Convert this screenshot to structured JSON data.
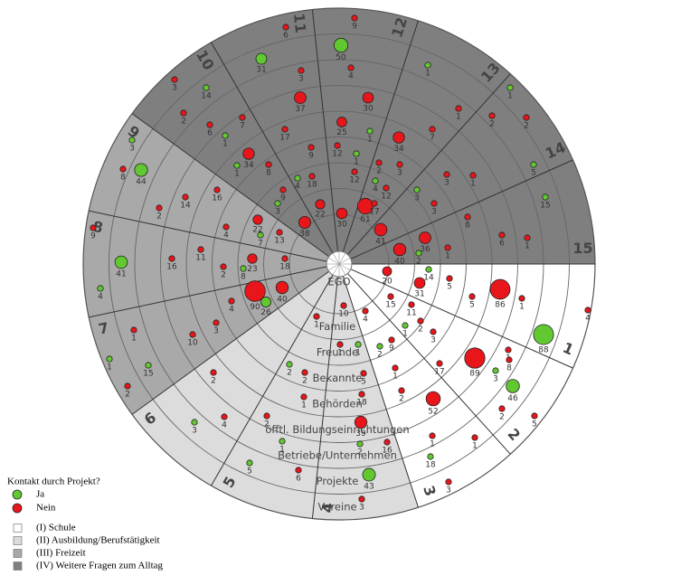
{
  "diagram": {
    "center_label": "EGO",
    "rings": [
      "Familie",
      "Freunde",
      "Bekannte",
      "Behörden",
      "öfftl. Bildungseinrichtungen",
      "Betriebe/Unternehmen",
      "Projekte",
      "Vereine"
    ],
    "sectors": [
      "1",
      "2",
      "3",
      "4",
      "5",
      "6",
      "7",
      "8",
      "9",
      "10",
      "11",
      "12",
      "13",
      "14",
      "15"
    ],
    "nodes": [
      {
        "label": "6",
        "color": "#e8161b"
      },
      {
        "label": "9",
        "color": "#e8161b"
      },
      {
        "label": "31",
        "color": "#62c832"
      },
      {
        "label": "50",
        "color": "#62c832"
      },
      {
        "label": "3",
        "color": "#e8161b"
      },
      {
        "label": "4",
        "color": "#e8161b"
      },
      {
        "label": "1",
        "color": "#62c832"
      },
      {
        "label": "1",
        "color": "#62c832"
      },
      {
        "label": "3",
        "color": "#e8161b"
      },
      {
        "label": "14",
        "color": "#62c832"
      },
      {
        "label": "37",
        "color": "#e8161b"
      },
      {
        "label": "30",
        "color": "#e8161b"
      },
      {
        "label": "1",
        "color": "#e8161b"
      },
      {
        "label": "2",
        "color": "#e8161b"
      },
      {
        "label": "6",
        "color": "#e8161b"
      },
      {
        "label": "7",
        "color": "#e8161b"
      },
      {
        "label": "17",
        "color": "#e8161b"
      },
      {
        "label": "25",
        "color": "#e8161b"
      },
      {
        "label": "1",
        "color": "#62c832"
      },
      {
        "label": "34",
        "color": "#e8161b"
      },
      {
        "label": "7",
        "color": "#e8161b"
      },
      {
        "label": "2",
        "color": "#e8161b"
      },
      {
        "label": "2",
        "color": "#e8161b"
      },
      {
        "label": "3",
        "color": "#62c832"
      },
      {
        "label": "1",
        "color": "#62c832"
      },
      {
        "label": "34",
        "color": "#e8161b"
      },
      {
        "label": "9",
        "color": "#e8161b"
      },
      {
        "label": "12",
        "color": "#e8161b"
      },
      {
        "label": "1",
        "color": "#62c832"
      },
      {
        "label": "2",
        "color": "#e8161b"
      },
      {
        "label": "3",
        "color": "#e8161b"
      },
      {
        "label": "44",
        "color": "#62c832"
      },
      {
        "label": "8",
        "color": "#e8161b"
      },
      {
        "label": "1",
        "color": "#62c832"
      },
      {
        "label": "8",
        "color": "#e8161b"
      },
      {
        "label": "4",
        "color": "#62c832"
      },
      {
        "label": "18",
        "color": "#e8161b"
      },
      {
        "label": "12",
        "color": "#e8161b"
      },
      {
        "label": "4",
        "color": "#62c832"
      },
      {
        "label": "3",
        "color": "#e8161b"
      },
      {
        "label": "1",
        "color": "#e8161b"
      },
      {
        "label": "5",
        "color": "#62c832"
      },
      {
        "label": "16",
        "color": "#e8161b"
      },
      {
        "label": "14",
        "color": "#e8161b"
      },
      {
        "label": "9",
        "color": "#e8161b"
      },
      {
        "label": "3",
        "color": "#62c832"
      },
      {
        "label": "22",
        "color": "#e8161b"
      },
      {
        "label": "61",
        "color": "#e8161b"
      },
      {
        "label": "12",
        "color": "#e8161b"
      },
      {
        "label": "3",
        "color": "#62c832"
      },
      {
        "label": "17",
        "color": "#e8161b"
      },
      {
        "label": "3",
        "color": "#e8161b"
      },
      {
        "label": "2",
        "color": "#e8161b"
      },
      {
        "label": "15",
        "color": "#62c832"
      },
      {
        "label": "38",
        "color": "#e8161b"
      },
      {
        "label": "30",
        "color": "#e8161b"
      },
      {
        "label": "41",
        "color": "#e8161b"
      },
      {
        "label": "22",
        "color": "#e8161b"
      },
      {
        "label": "8",
        "color": "#e8161b"
      },
      {
        "label": "9",
        "color": "#e8161b"
      },
      {
        "label": "4",
        "color": "#e8161b"
      },
      {
        "label": "7",
        "color": "#62c832"
      },
      {
        "label": "13",
        "color": "#e8161b"
      },
      {
        "label": "36",
        "color": "#e8161b"
      },
      {
        "label": "40",
        "color": "#e8161b"
      },
      {
        "label": "6",
        "color": "#e8161b"
      },
      {
        "label": "1",
        "color": "#e8161b"
      },
      {
        "label": "11",
        "color": "#e8161b"
      },
      {
        "label": "23",
        "color": "#e8161b"
      },
      {
        "label": "2",
        "color": "#62c832"
      },
      {
        "label": "1",
        "color": "#e8161b"
      },
      {
        "label": "41",
        "color": "#62c832"
      },
      {
        "label": "16",
        "color": "#e8161b"
      },
      {
        "label": "2",
        "color": "#e8161b"
      },
      {
        "label": "8",
        "color": "#62c832"
      },
      {
        "label": "18",
        "color": "#e8161b"
      },
      {
        "label": "14",
        "color": "#62c832"
      },
      {
        "label": "20",
        "color": "#e8161b"
      },
      {
        "label": "90",
        "color": "#e8161b"
      },
      {
        "label": "40",
        "color": "#e8161b"
      },
      {
        "label": "26",
        "color": "#62c832"
      },
      {
        "label": "31",
        "color": "#e8161b"
      },
      {
        "label": "5",
        "color": "#e8161b"
      },
      {
        "label": "86",
        "color": "#e8161b"
      },
      {
        "label": "4",
        "color": "#62c832"
      },
      {
        "label": "4",
        "color": "#e8161b"
      },
      {
        "label": "5",
        "color": "#e8161b"
      },
      {
        "label": "1",
        "color": "#e8161b"
      },
      {
        "label": "4",
        "color": "#e8161b"
      },
      {
        "label": "15",
        "color": "#e8161b"
      },
      {
        "label": "11",
        "color": "#e8161b"
      },
      {
        "label": "10",
        "color": "#e8161b"
      },
      {
        "label": "1",
        "color": "#e8161b"
      },
      {
        "label": "4",
        "color": "#e8161b"
      },
      {
        "label": "3",
        "color": "#e8161b"
      },
      {
        "label": "1",
        "color": "#e8161b"
      },
      {
        "label": "10",
        "color": "#e8161b"
      },
      {
        "label": "2",
        "color": "#e8161b"
      },
      {
        "label": "1",
        "color": "#62c832"
      },
      {
        "label": "3",
        "color": "#e8161b"
      },
      {
        "label": "88",
        "color": "#62c832"
      },
      {
        "label": "1",
        "color": "#e8161b"
      },
      {
        "label": "1",
        "color": "#62c832"
      },
      {
        "label": "9",
        "color": "#e8161b"
      },
      {
        "label": "2",
        "color": "#62c832"
      },
      {
        "label": "89",
        "color": "#e8161b"
      },
      {
        "label": "1",
        "color": "#62c832"
      },
      {
        "label": "15",
        "color": "#62c832"
      },
      {
        "label": "2",
        "color": "#62c832"
      },
      {
        "label": "1",
        "color": "#e8161b"
      },
      {
        "label": "8",
        "color": "#e8161b"
      },
      {
        "label": "3",
        "color": "#62c832"
      },
      {
        "label": "17",
        "color": "#e8161b"
      },
      {
        "label": "1",
        "color": "#e8161b"
      },
      {
        "label": "2",
        "color": "#e8161b"
      },
      {
        "label": "2",
        "color": "#e8161b"
      },
      {
        "label": "5",
        "color": "#e8161b"
      },
      {
        "label": "2",
        "color": "#e8161b"
      },
      {
        "label": "46",
        "color": "#62c832"
      },
      {
        "label": "18",
        "color": "#e8161b"
      },
      {
        "label": "1",
        "color": "#e8161b"
      },
      {
        "label": "2",
        "color": "#e8161b"
      },
      {
        "label": "52",
        "color": "#e8161b"
      },
      {
        "label": "4",
        "color": "#e8161b"
      },
      {
        "label": "3",
        "color": "#62c832"
      },
      {
        "label": "2",
        "color": "#e8161b"
      },
      {
        "label": "2",
        "color": "#e8161b"
      },
      {
        "label": "5",
        "color": "#e8161b"
      },
      {
        "label": "39",
        "color": "#e8161b"
      },
      {
        "label": "1",
        "color": "#62c832"
      },
      {
        "label": "1",
        "color": "#e8161b"
      },
      {
        "label": "1",
        "color": "#e8161b"
      },
      {
        "label": "16",
        "color": "#e8161b"
      },
      {
        "label": "2",
        "color": "#62c832"
      },
      {
        "label": "5",
        "color": "#62c832"
      },
      {
        "label": "6",
        "color": "#e8161b"
      },
      {
        "label": "18",
        "color": "#62c832"
      },
      {
        "label": "43",
        "color": "#62c832"
      },
      {
        "label": "3",
        "color": "#e8161b"
      },
      {
        "label": "3",
        "color": "#e8161b"
      }
    ]
  },
  "legend": {
    "title": "Kontakt durch Projekt?",
    "contact": [
      {
        "label": "Ja",
        "color": "#62c832"
      },
      {
        "label": "Nein",
        "color": "#e8161b"
      }
    ],
    "areas": [
      {
        "label": "(I) Schule",
        "color": "#ffffff"
      },
      {
        "label": "(II) Ausbildung/Berufstätigkeit",
        "color": "#dcdcdc"
      },
      {
        "label": "(III) Freizeit",
        "color": "#a9a9a9"
      },
      {
        "label": "(IV) Weitere Fragen zum Alltag",
        "color": "#7f7f7f"
      }
    ]
  }
}
